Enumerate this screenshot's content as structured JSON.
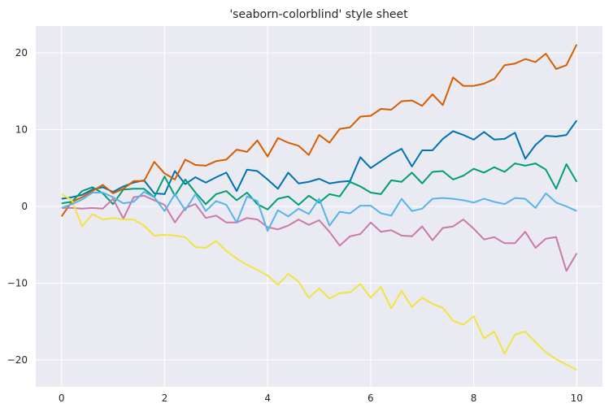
{
  "chart_data": {
    "type": "line",
    "title": "'seaborn-colorblind' style sheet",
    "xlabel": "",
    "ylabel": "",
    "xlim": [
      -0.5,
      10.5
    ],
    "ylim": [
      -23.5,
      23.5
    ],
    "xticks": [
      0,
      2,
      4,
      6,
      8,
      10
    ],
    "yticks": [
      -20,
      -10,
      0,
      10,
      20
    ],
    "grid": true,
    "background": "#eaeaf2",
    "grid_color": "#ffffff",
    "x": [
      0,
      0.2,
      0.4,
      0.6,
      0.8,
      1.0,
      1.2,
      1.4,
      1.6,
      1.8,
      2.0,
      2.2,
      2.4,
      2.6,
      2.8,
      3.0,
      3.2,
      3.4,
      3.6,
      3.8,
      4.0,
      4.2,
      4.4,
      4.6,
      4.8,
      5.0,
      5.2,
      5.4,
      5.6,
      5.8,
      6.0,
      6.2,
      6.4,
      6.6,
      6.8,
      7.0,
      7.2,
      7.4,
      7.6,
      7.8,
      8.0,
      8.2,
      8.4,
      8.6,
      8.8,
      9.0,
      9.2,
      9.4,
      9.6,
      9.8,
      10.0
    ],
    "series": [
      {
        "color": "#0072b2",
        "values": [
          1.0,
          1.2,
          1.5,
          2.2,
          2.5,
          1.9,
          2.6,
          3.1,
          3.4,
          1.7,
          1.6,
          4.6,
          2.9,
          3.8,
          3.1,
          3.8,
          4.4,
          2.0,
          4.8,
          4.6,
          3.5,
          2.3,
          4.4,
          3.0,
          3.2,
          3.6,
          3.0,
          3.2,
          3.3,
          6.4,
          5.0,
          5.9,
          6.8,
          7.5,
          5.2,
          7.3,
          7.3,
          8.8,
          9.8,
          9.3,
          8.7,
          9.7,
          8.7,
          8.8,
          9.6,
          6.2,
          8.0,
          9.2,
          9.1,
          9.3,
          11.2
        ]
      },
      {
        "color": "#009e73",
        "values": [
          0.4,
          0.6,
          2.0,
          2.5,
          1.7,
          0.3,
          2.2,
          2.3,
          2.3,
          1.2,
          3.9,
          1.4,
          3.5,
          1.8,
          0.3,
          1.6,
          2.0,
          0.8,
          1.8,
          0.3,
          -0.4,
          1.0,
          1.3,
          0.2,
          1.4,
          0.5,
          1.6,
          1.3,
          3.2,
          2.6,
          1.8,
          1.6,
          3.4,
          3.2,
          4.4,
          3.0,
          4.5,
          4.6,
          3.5,
          4.0,
          4.9,
          4.4,
          5.1,
          4.5,
          5.6,
          5.3,
          5.6,
          4.8,
          2.3,
          5.5,
          3.2
        ]
      },
      {
        "color": "#d55e00",
        "values": [
          -1.3,
          0.6,
          1.2,
          2.0,
          2.8,
          1.7,
          2.3,
          3.3,
          3.3,
          5.8,
          4.3,
          3.5,
          6.1,
          5.4,
          5.3,
          5.9,
          6.1,
          7.4,
          7.1,
          8.6,
          6.5,
          8.9,
          8.3,
          7.9,
          6.7,
          9.3,
          8.3,
          10.1,
          10.3,
          11.7,
          11.8,
          12.7,
          12.6,
          13.7,
          13.8,
          13.1,
          14.6,
          13.2,
          16.8,
          15.7,
          15.7,
          16.0,
          16.6,
          18.4,
          18.6,
          19.2,
          18.8,
          19.9,
          17.9,
          18.4,
          21.1
        ]
      },
      {
        "color": "#cc79a7",
        "values": [
          -0.2,
          -0.2,
          -0.3,
          -0.2,
          -0.3,
          1.0,
          -1.6,
          1.2,
          1.4,
          0.8,
          0.2,
          -2.1,
          -0.2,
          0.3,
          -1.5,
          -1.2,
          -2.1,
          -2.1,
          -1.5,
          -1.7,
          -2.7,
          -3.0,
          -2.5,
          -1.7,
          -2.4,
          -1.8,
          -3.3,
          -5.1,
          -3.9,
          -3.6,
          -2.1,
          -3.3,
          -3.1,
          -3.8,
          -3.9,
          -2.6,
          -4.4,
          -2.8,
          -2.6,
          -1.7,
          -2.9,
          -4.3,
          -4.0,
          -4.8,
          -4.8,
          -3.3,
          -5.4,
          -4.2,
          -4.0,
          -8.4,
          -6.1
        ]
      },
      {
        "color": "#f0e442",
        "values": [
          1.6,
          0.8,
          -2.6,
          -1.0,
          -1.7,
          -1.5,
          -1.7,
          -1.7,
          -2.5,
          -3.8,
          -3.7,
          -3.8,
          -4.0,
          -5.3,
          -5.4,
          -4.5,
          -5.8,
          -6.8,
          -7.6,
          -8.3,
          -9.0,
          -10.2,
          -8.8,
          -9.8,
          -11.9,
          -10.7,
          -12.0,
          -11.3,
          -11.2,
          -10.1,
          -11.9,
          -10.5,
          -13.3,
          -11.0,
          -13.1,
          -11.9,
          -12.7,
          -13.2,
          -14.9,
          -15.4,
          -14.3,
          -17.2,
          -16.3,
          -19.2,
          -16.7,
          -16.3,
          -17.7,
          -19.0,
          -19.9,
          -20.6,
          -21.3
        ]
      },
      {
        "color": "#56b4e9",
        "values": [
          -0.2,
          0.3,
          0.9,
          1.8,
          1.8,
          1.2,
          0.4,
          0.6,
          1.9,
          1.2,
          -0.6,
          1.6,
          -0.5,
          1.6,
          -0.6,
          0.7,
          0.2,
          -2.1,
          1.3,
          0.7,
          -3.2,
          -0.5,
          -1.3,
          -0.3,
          -1.0,
          1.0,
          -2.5,
          -0.7,
          -0.9,
          0.1,
          0.1,
          -0.9,
          -1.2,
          1.0,
          -0.6,
          -0.3,
          1.0,
          1.1,
          1.0,
          0.8,
          0.5,
          1.0,
          0.6,
          0.3,
          1.1,
          1.0,
          -0.2,
          1.7,
          0.5,
          0.0,
          -0.6
        ]
      }
    ]
  }
}
